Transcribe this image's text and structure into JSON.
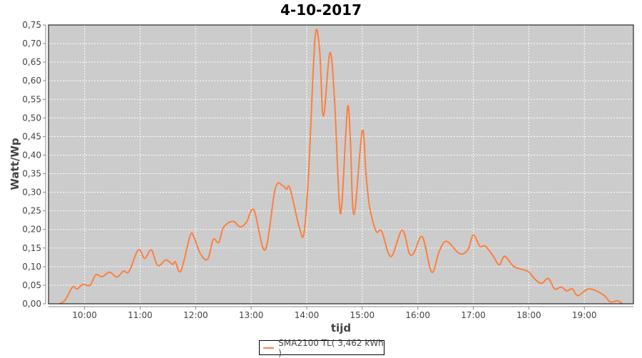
{
  "chart_data": {
    "type": "line",
    "title": "4-10-2017",
    "xlabel": "tijd",
    "ylabel": "Watt/Wp",
    "xlim": [
      "09:21",
      "19:53"
    ],
    "ylim": [
      0,
      0.75
    ],
    "x_ticks": [
      "10:00",
      "11:00",
      "12:00",
      "13:00",
      "14:00",
      "15:00",
      "16:00",
      "17:00",
      "18:00",
      "19:00"
    ],
    "y_ticks": [
      "0,00",
      "0,05",
      "0,10",
      "0,15",
      "0,20",
      "0,25",
      "0,30",
      "0,35",
      "0,40",
      "0,45",
      "0,50",
      "0,55",
      "0,60",
      "0,65",
      "0,70",
      "0,75"
    ],
    "grid": true,
    "legend_position": "bottom",
    "background_color": "#cccccc",
    "series": [
      {
        "name": "SMA2100 TL( 3,462 kWh )",
        "color": "#ff7f3f",
        "x": [
          "09:33",
          "09:39",
          "09:47",
          "09:52",
          "09:58",
          "10:06",
          "10:12",
          "10:19",
          "10:27",
          "10:35",
          "10:42",
          "10:48",
          "10:58",
          "11:05",
          "11:12",
          "11:19",
          "11:28",
          "11:35",
          "11:38",
          "11:44",
          "11:54",
          "11:58",
          "12:05",
          "12:13",
          "12:19",
          "12:25",
          "12:30",
          "12:40",
          "12:48",
          "12:55",
          "13:03",
          "13:15",
          "13:26",
          "13:34",
          "13:38",
          "13:42",
          "13:52",
          "13:57",
          "14:02",
          "14:09",
          "14:14",
          "14:18",
          "14:25",
          "14:30",
          "14:35",
          "14:38",
          "14:44",
          "14:47",
          "14:51",
          "15:00",
          "15:04",
          "15:08",
          "15:15",
          "15:21",
          "15:31",
          "15:43",
          "15:51",
          "15:56",
          "16:05",
          "16:15",
          "16:23",
          "16:31",
          "16:45",
          "16:54",
          "17:00",
          "17:07",
          "17:13",
          "17:21",
          "17:28",
          "17:34",
          "17:44",
          "17:59",
          "18:07",
          "18:14",
          "18:21",
          "18:28",
          "18:35",
          "18:41",
          "18:47",
          "18:53",
          "19:05",
          "19:20",
          "19:28",
          "19:36",
          "19:41"
        ],
        "y": [
          0.0,
          0.01,
          0.045,
          0.04,
          0.052,
          0.05,
          0.078,
          0.073,
          0.085,
          0.072,
          0.088,
          0.087,
          0.145,
          0.122,
          0.145,
          0.103,
          0.118,
          0.106,
          0.113,
          0.088,
          0.183,
          0.18,
          0.135,
          0.12,
          0.173,
          0.165,
          0.205,
          0.222,
          0.207,
          0.22,
          0.252,
          0.145,
          0.31,
          0.318,
          0.308,
          0.31,
          0.205,
          0.19,
          0.35,
          0.715,
          0.68,
          0.505,
          0.675,
          0.55,
          0.28,
          0.27,
          0.525,
          0.45,
          0.24,
          0.465,
          0.35,
          0.26,
          0.195,
          0.195,
          0.127,
          0.198,
          0.135,
          0.138,
          0.18,
          0.085,
          0.14,
          0.168,
          0.135,
          0.145,
          0.185,
          0.155,
          0.155,
          0.13,
          0.105,
          0.128,
          0.1,
          0.087,
          0.065,
          0.055,
          0.068,
          0.04,
          0.045,
          0.035,
          0.04,
          0.022,
          0.04,
          0.025,
          0.005,
          0.008,
          0.0
        ]
      }
    ]
  }
}
